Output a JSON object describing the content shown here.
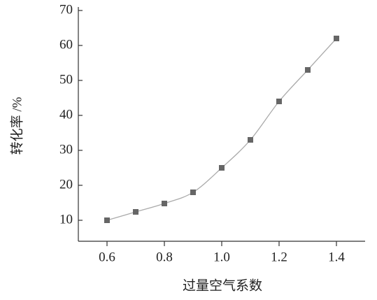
{
  "chart_data": {
    "type": "line",
    "xlabel": "过量空气系数",
    "ylabel": "转化率 /%",
    "x": [
      0.6,
      0.7,
      0.8,
      0.9,
      1.0,
      1.1,
      1.2,
      1.3,
      1.4
    ],
    "series": [
      {
        "color": "#666666",
        "values": [
          10,
          12.4,
          14.8,
          18,
          25,
          33,
          44,
          53,
          62
        ]
      }
    ],
    "xlim": [
      0.5,
      1.5
    ],
    "xticks": [
      0.6,
      0.8,
      {
        "value": 1,
        "label": "1.0"
      },
      1.2,
      1.4
    ],
    "ylim": [
      4,
      70
    ],
    "yticks": [
      10,
      20,
      30,
      40,
      50,
      60,
      70
    ]
  }
}
